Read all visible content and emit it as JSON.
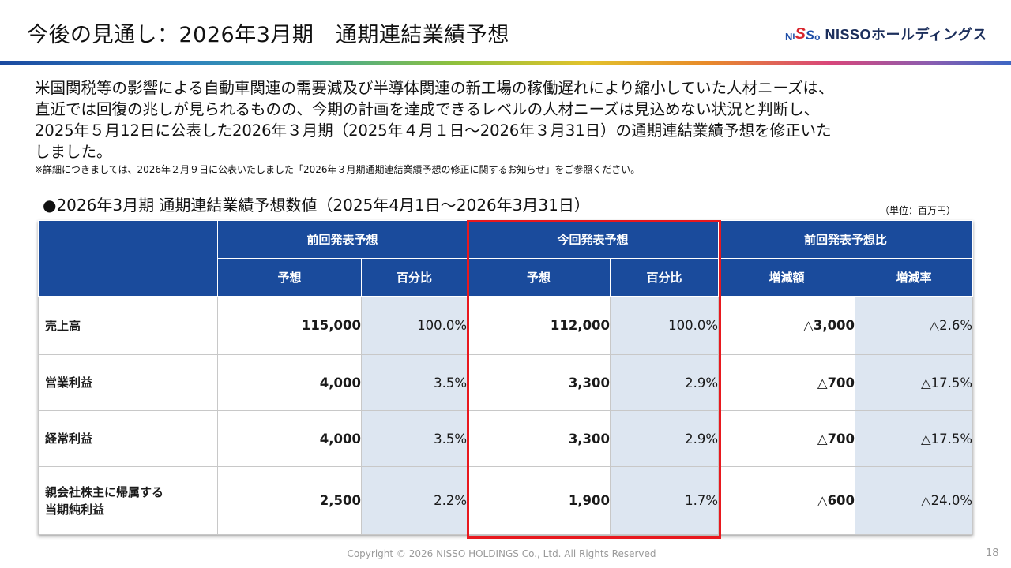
{
  "header": {
    "title": "今後の見通し：2026年3月期　通期連結業績予想",
    "logo_text": "NISSOホールディングス",
    "logo_mark_text": "NISSO"
  },
  "intro": {
    "lines": [
      "米国関税等の影響による自動車関連の需要減及び半導体関連の新工場の稼働遅れにより縮小していた人材ニーズは、",
      "直近では回復の兆しが見られるものの、今期の計画を達成できるレベルの人材ニーズは見込めない状況と判断し、",
      "2025年５月12日に公表した2026年３月期（2025年４月１日～2026年３月31日）の通期連結業績予想を修正いた",
      "しました。"
    ],
    "note": "※詳細につきましては、2026年２月９日に公表いたしました「2026年３月期通期連結業績予想の修正に関するお知らせ」をご参照ください。"
  },
  "section": {
    "title": "●2026年3月期 通期連結業績予想数値（2025年4月1日～2026年3月31日）",
    "unit": "（単位：百万円）"
  },
  "table": {
    "group_headers": [
      "前回発表予想",
      "今回発表予想",
      "前回発表予想比"
    ],
    "sub_headers": [
      "予想",
      "百分比",
      "予想",
      "百分比",
      "増減額",
      "増減率"
    ],
    "rows": [
      {
        "label": "売上高",
        "prev_forecast": "115,000",
        "prev_pct": "100.0%",
        "curr_forecast": "112,000",
        "curr_pct": "100.0%",
        "change_amount": "△3,000",
        "change_rate": "△2.6%"
      },
      {
        "label": "営業利益",
        "prev_forecast": "4,000",
        "prev_pct": "3.5%",
        "curr_forecast": "3,300",
        "curr_pct": "2.9%",
        "change_amount": "△700",
        "change_rate": "△17.5%"
      },
      {
        "label": "経常利益",
        "prev_forecast": "4,000",
        "prev_pct": "3.5%",
        "curr_forecast": "3,300",
        "curr_pct": "2.9%",
        "change_amount": "△700",
        "change_rate": "△17.5%"
      },
      {
        "label_line1": "親会社株主に帰属する",
        "label_line2": "当期純利益",
        "prev_forecast": "2,500",
        "prev_pct": "2.2%",
        "curr_forecast": "1,900",
        "curr_pct": "1.7%",
        "change_amount": "△600",
        "change_rate": "△24.0%"
      }
    ]
  },
  "footer": {
    "copyright": "Copyright © 2026 NISSO HOLDINGS Co., Ltd. All Rights Reserved",
    "page_number": "18"
  },
  "colors": {
    "header_blue": "#1a4b9c",
    "shade_blue": "#dde6f1",
    "highlight_red": "#e8181e"
  }
}
